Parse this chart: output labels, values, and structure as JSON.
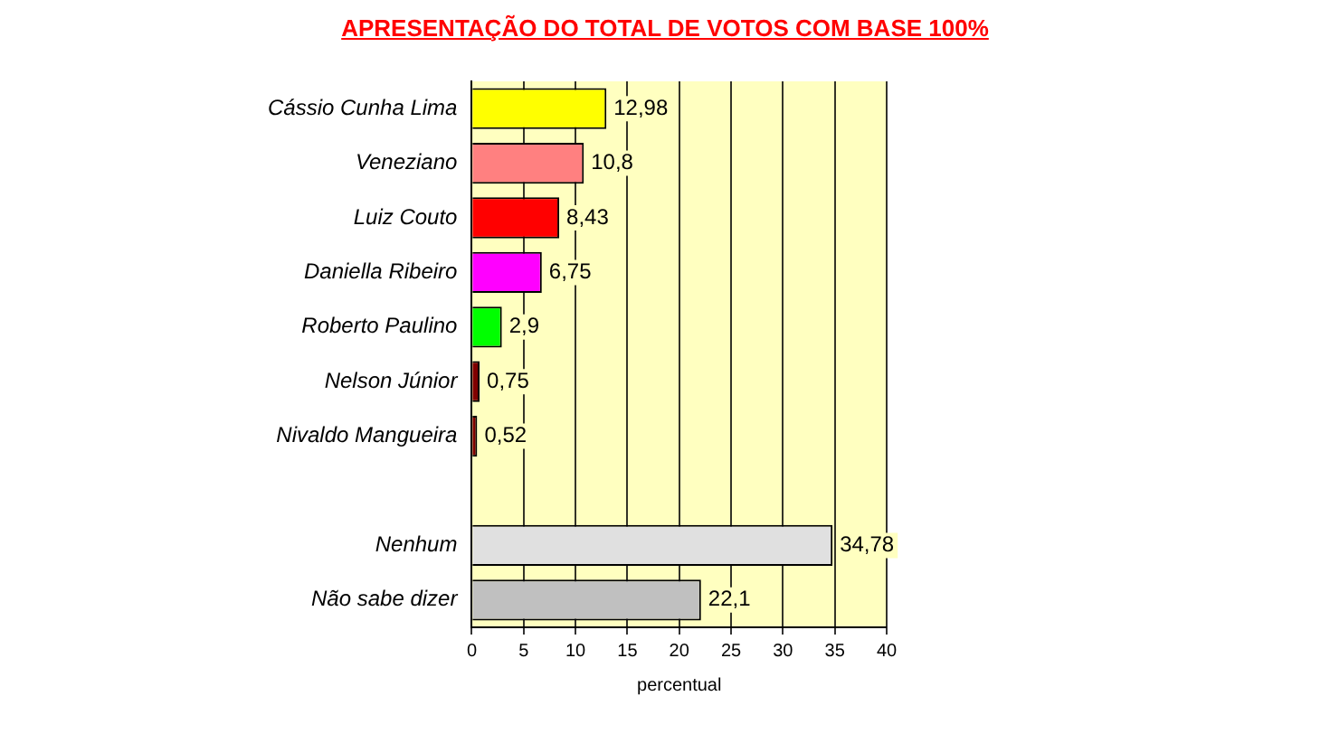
{
  "chart_data": {
    "type": "bar",
    "orientation": "horizontal",
    "title": "APRESENTAÇÃO DO TOTAL DE VOTOS COM BASE 100%",
    "xlabel": "percentual",
    "categories": [
      "Cássio Cunha Lima",
      "Veneziano",
      "Luiz Couto",
      "Daniella Ribeiro",
      "Roberto Paulino",
      "Nelson Júnior",
      "Nivaldo Mangueira",
      null,
      "Nenhum",
      "Não sabe dizer"
    ],
    "values": [
      12.98,
      10.8,
      8.43,
      6.75,
      2.9,
      0.75,
      0.52,
      null,
      34.78,
      22.1
    ],
    "value_labels": [
      "12,98",
      "10,8",
      "8,43",
      "6,75",
      "2,9",
      "0,75",
      "0,52",
      null,
      "34,78",
      "22,1"
    ],
    "colors": [
      "#ffff00",
      "#ff8080",
      "#ff0000",
      "#ff00ff",
      "#00ff00",
      "#800000",
      "#800000",
      "#000000",
      "#e0e0e0",
      "#c0c0c0"
    ],
    "xlim": [
      0,
      40
    ],
    "xticks": [
      0,
      5,
      10,
      15,
      20,
      25,
      30,
      35,
      40
    ],
    "grid": "x",
    "legend": false
  }
}
